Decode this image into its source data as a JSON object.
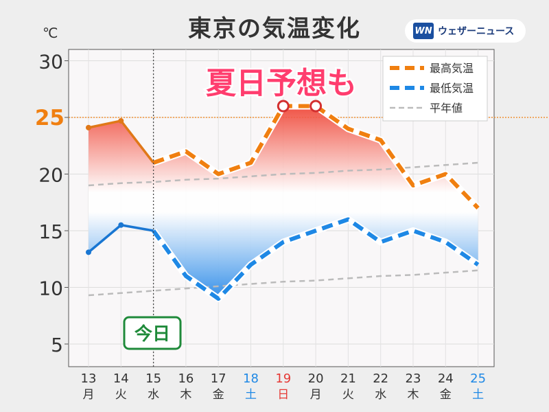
{
  "title": "東京の気温変化",
  "unit": "℃",
  "brand": {
    "mark": "WN",
    "name": "ウェザーニュース"
  },
  "annotation": "夏日予想も",
  "today_label": "今日",
  "highlight_tick": "25",
  "chart_data": {
    "type": "line",
    "x": [
      {
        "day": "13",
        "dow": "月",
        "color": "#333333"
      },
      {
        "day": "14",
        "dow": "火",
        "color": "#333333"
      },
      {
        "day": "15",
        "dow": "水",
        "color": "#333333"
      },
      {
        "day": "16",
        "dow": "木",
        "color": "#333333"
      },
      {
        "day": "17",
        "dow": "金",
        "color": "#333333"
      },
      {
        "day": "18",
        "dow": "土",
        "color": "#1e88e5"
      },
      {
        "day": "19",
        "dow": "日",
        "color": "#e53935"
      },
      {
        "day": "20",
        "dow": "月",
        "color": "#333333"
      },
      {
        "day": "21",
        "dow": "火",
        "color": "#333333"
      },
      {
        "day": "22",
        "dow": "水",
        "color": "#333333"
      },
      {
        "day": "23",
        "dow": "木",
        "color": "#333333"
      },
      {
        "day": "24",
        "dow": "金",
        "color": "#333333"
      },
      {
        "day": "25",
        "dow": "土",
        "color": "#1e88e5"
      }
    ],
    "ylim": [
      3,
      31
    ],
    "yticks": [
      "5",
      "10",
      "15",
      "20",
      "25",
      "30"
    ],
    "today_index": 2,
    "series": [
      {
        "name": "最高気温",
        "color": "#f07f10",
        "observed_color": "#e07818",
        "values": [
          24.1,
          24.7,
          21,
          22,
          20,
          21,
          26,
          26,
          24,
          23,
          19,
          20,
          17
        ]
      },
      {
        "name": "最低気温",
        "color": "#1e88e5",
        "observed_color": "#1976d2",
        "values": [
          13.1,
          15.5,
          15,
          11,
          9,
          12,
          14,
          15,
          16,
          14,
          15,
          14,
          12
        ]
      },
      {
        "name": "平年値",
        "color": "#bbbbbb",
        "high": [
          19.0,
          19.2,
          19.3,
          19.5,
          19.6,
          19.8,
          20.0,
          20.1,
          20.3,
          20.4,
          20.6,
          20.8,
          21.0
        ],
        "low": [
          9.3,
          9.5,
          9.7,
          9.9,
          10.1,
          10.3,
          10.5,
          10.6,
          10.8,
          11.0,
          11.1,
          11.3,
          11.5
        ]
      }
    ],
    "legend_position": "top-right",
    "grid": true
  }
}
